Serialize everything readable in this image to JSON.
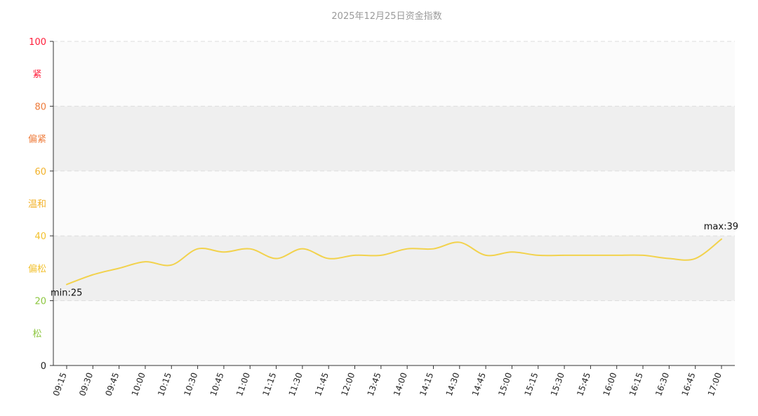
{
  "chart_data": {
    "type": "line",
    "title": "2025年12月25日资金指数",
    "x": [
      "09:15",
      "09:30",
      "09:45",
      "10:00",
      "10:15",
      "10:30",
      "10:45",
      "11:00",
      "11:15",
      "11:30",
      "11:45",
      "12:00",
      "13:45",
      "14:00",
      "14:15",
      "14:30",
      "14:45",
      "15:00",
      "15:15",
      "15:30",
      "15:45",
      "16:00",
      "16:15",
      "16:30",
      "16:45",
      "17:00"
    ],
    "series": [
      {
        "values": [
          25,
          28,
          30,
          32,
          31,
          36,
          35,
          36,
          33,
          36,
          33,
          34,
          34,
          36,
          36,
          38,
          34,
          35,
          34,
          34,
          34,
          34,
          34,
          33,
          33,
          39
        ]
      }
    ],
    "ylim": [
      0,
      100
    ],
    "y_ticks": [
      0,
      20,
      40,
      60,
      80,
      100
    ],
    "y_tick_colors": {
      "0": "#222222",
      "20": "#8cc63f",
      "40": "#f2c12e",
      "60": "#f2b22a",
      "80": "#ee7b3a",
      "100": "#ff1d3a"
    },
    "bands": [
      {
        "from": 0,
        "to": 20,
        "label": "松",
        "label_color": "#8cc63f",
        "fill": "#fbfbfb"
      },
      {
        "from": 20,
        "to": 40,
        "label": "偏松",
        "label_color": "#f2c12e",
        "fill": "#efefef"
      },
      {
        "from": 40,
        "to": 60,
        "label": "温和",
        "label_color": "#f2b22a",
        "fill": "#fbfbfb"
      },
      {
        "from": 60,
        "to": 80,
        "label": "偏紧",
        "label_color": "#ee7b3a",
        "fill": "#efefef"
      },
      {
        "from": 80,
        "to": 100,
        "label": "紧",
        "label_color": "#ff1d3a",
        "fill": "#fbfbfb"
      }
    ],
    "min_label": "min:25",
    "max_label": "max:39",
    "line_color": "#f2d24c",
    "grid": true
  }
}
